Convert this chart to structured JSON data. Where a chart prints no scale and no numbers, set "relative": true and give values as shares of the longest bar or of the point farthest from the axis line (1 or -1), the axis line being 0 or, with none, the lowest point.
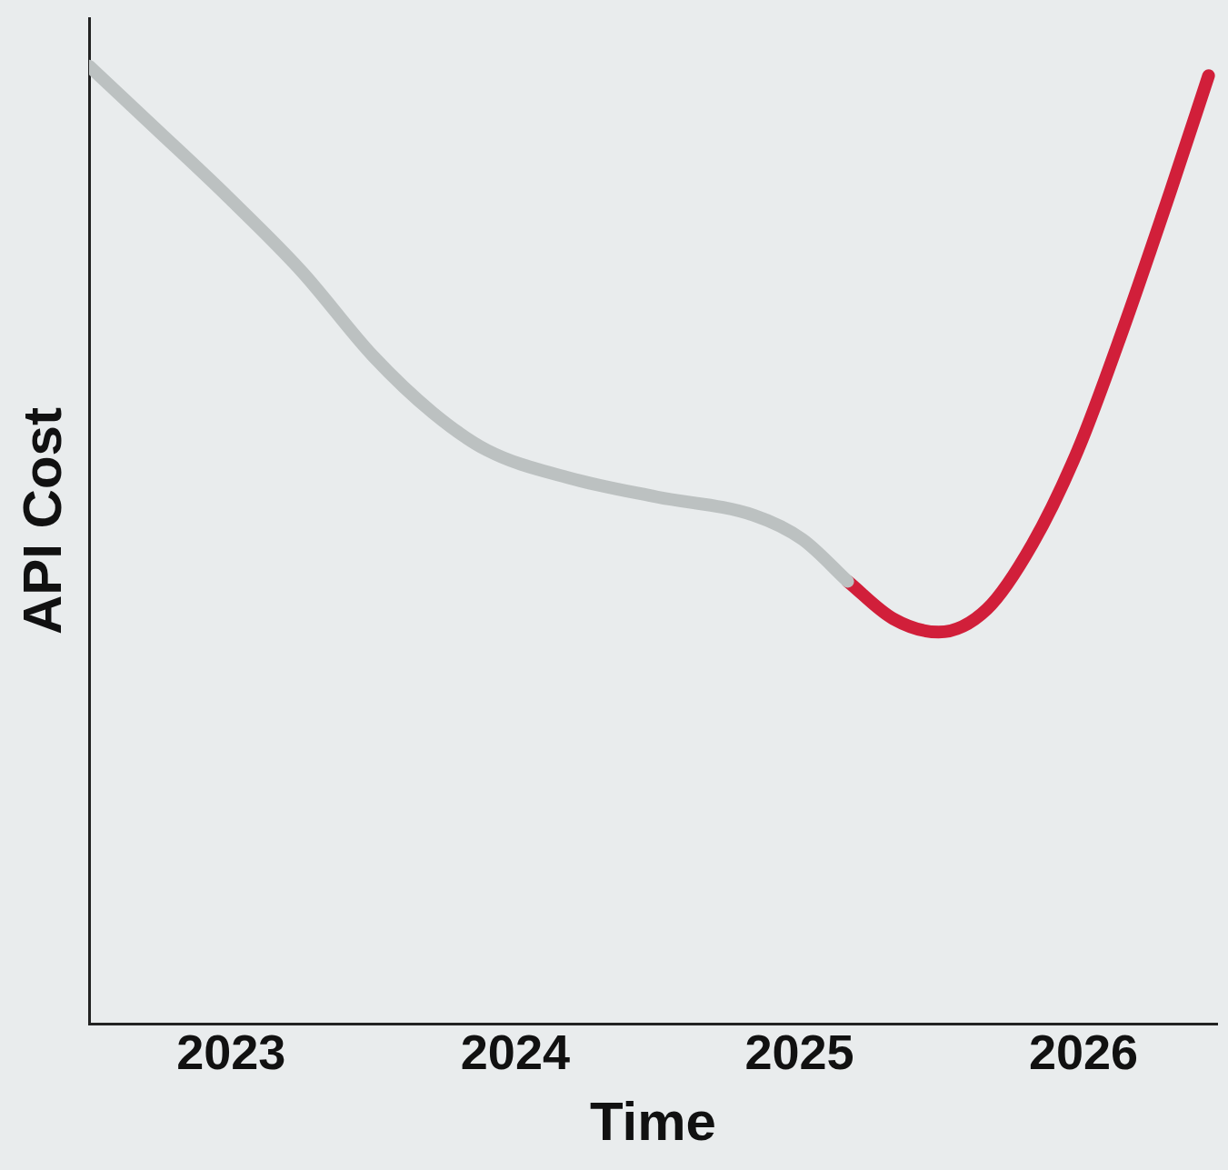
{
  "chart_data": {
    "type": "line",
    "relative": true,
    "xlabel": "Time",
    "ylabel": "API Cost",
    "xlim": [
      2023,
      2026.97
    ],
    "xticks": [
      {
        "value": 2023.5,
        "label": "2023"
      },
      {
        "value": 2024.5,
        "label": "2024"
      },
      {
        "value": 2025.5,
        "label": "2025"
      },
      {
        "value": 2026.5,
        "label": "2026"
      }
    ],
    "series": [
      {
        "color": "#bcc1c1",
        "x": [
          2023.0,
          2023.23,
          2023.49,
          2023.75,
          2024.0,
          2024.21,
          2024.4,
          2024.69,
          2025.0,
          2025.34,
          2025.51,
          2025.67
        ],
        "values": [
          1.0,
          0.936,
          0.863,
          0.785,
          0.697,
          0.638,
          0.599,
          0.57,
          0.55,
          0.531,
          0.506,
          0.462
        ]
      },
      {
        "color": "#d11f3a",
        "x": [
          2025.67,
          2025.83,
          2025.99,
          2026.16,
          2026.32,
          2026.48,
          2026.64,
          2026.81,
          2026.94
        ],
        "values": [
          0.462,
          0.423,
          0.409,
          0.433,
          0.501,
          0.599,
          0.726,
          0.873,
          0.99
        ]
      }
    ],
    "grid": false,
    "legend": false,
    "marker": "none",
    "line_style": "solid"
  }
}
